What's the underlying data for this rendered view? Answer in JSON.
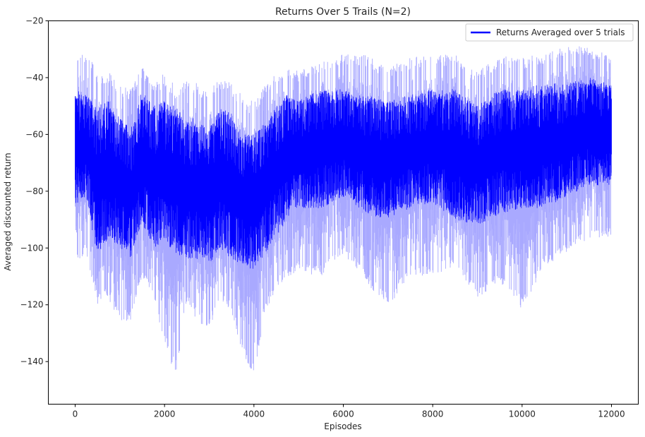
{
  "chart_data": {
    "type": "line",
    "title": "Returns Over 5 Trails (N=2)",
    "xlabel": "Episodes",
    "ylabel": "Averaged discounted return",
    "xlim": [
      -600,
      12600
    ],
    "ylim": [
      -155,
      -20
    ],
    "xticks": [
      0,
      2000,
      4000,
      6000,
      8000,
      10000,
      12000
    ],
    "yticks": [
      -20,
      -40,
      -60,
      -80,
      -100,
      -120,
      -140
    ],
    "grid": false,
    "legend_position": "top-right",
    "series": [
      {
        "name": "Returns Averaged over 5 trials",
        "color": "#0000ff",
        "band_color": "#8c8cff",
        "x": [
          0,
          250,
          500,
          750,
          1000,
          1250,
          1500,
          1750,
          2000,
          2250,
          2500,
          2750,
          3000,
          3250,
          3500,
          3750,
          4000,
          4250,
          4500,
          4750,
          5000,
          5500,
          6000,
          6500,
          7000,
          7500,
          8000,
          8500,
          9000,
          9500,
          10000,
          10500,
          11000,
          11500,
          12000
        ],
        "mean": [
          -62,
          -60,
          -70,
          -68,
          -76,
          -80,
          -68,
          -74,
          -74,
          -72,
          -78,
          -80,
          -82,
          -76,
          -78,
          -84,
          -86,
          -82,
          -72,
          -66,
          -64,
          -62,
          -60,
          -64,
          -66,
          -64,
          -62,
          -64,
          -68,
          -64,
          -62,
          -60,
          -58,
          -56,
          -56
        ],
        "line_min": [
          -86,
          -82,
          -104,
          -96,
          -100,
          -104,
          -92,
          -100,
          -98,
          -102,
          -104,
          -104,
          -106,
          -100,
          -104,
          -106,
          -108,
          -102,
          -96,
          -90,
          -86,
          -86,
          -82,
          -88,
          -90,
          -86,
          -84,
          -90,
          -92,
          -88,
          -86,
          -86,
          -82,
          -78,
          -78
        ],
        "line_max": [
          -44,
          -46,
          -50,
          -48,
          -54,
          -58,
          -44,
          -50,
          -48,
          -50,
          -54,
          -54,
          -58,
          -50,
          -52,
          -60,
          -60,
          -56,
          -50,
          -46,
          -48,
          -44,
          -44,
          -46,
          -48,
          -46,
          -44,
          -44,
          -50,
          -44,
          -44,
          -42,
          -42,
          -40,
          -42
        ],
        "band_min": [
          -107,
          -104,
          -122,
          -120,
          -128,
          -128,
          -112,
          -120,
          -136,
          -148,
          -122,
          -128,
          -131,
          -120,
          -126,
          -140,
          -147,
          -125,
          -116,
          -112,
          -110,
          -112,
          -104,
          -114,
          -123,
          -112,
          -112,
          -108,
          -120,
          -114,
          -124,
          -108,
          -104,
          -98,
          -98
        ],
        "band_max": [
          -31,
          -29,
          -36,
          -36,
          -40,
          -42,
          -34,
          -40,
          -36,
          -40,
          -38,
          -40,
          -42,
          -38,
          -40,
          -44,
          -46,
          -40,
          -36,
          -34,
          -36,
          -32,
          -30,
          -30,
          -34,
          -31,
          -30,
          -30,
          -36,
          -30,
          -30,
          -30,
          -26,
          -28,
          -30
        ]
      }
    ]
  }
}
